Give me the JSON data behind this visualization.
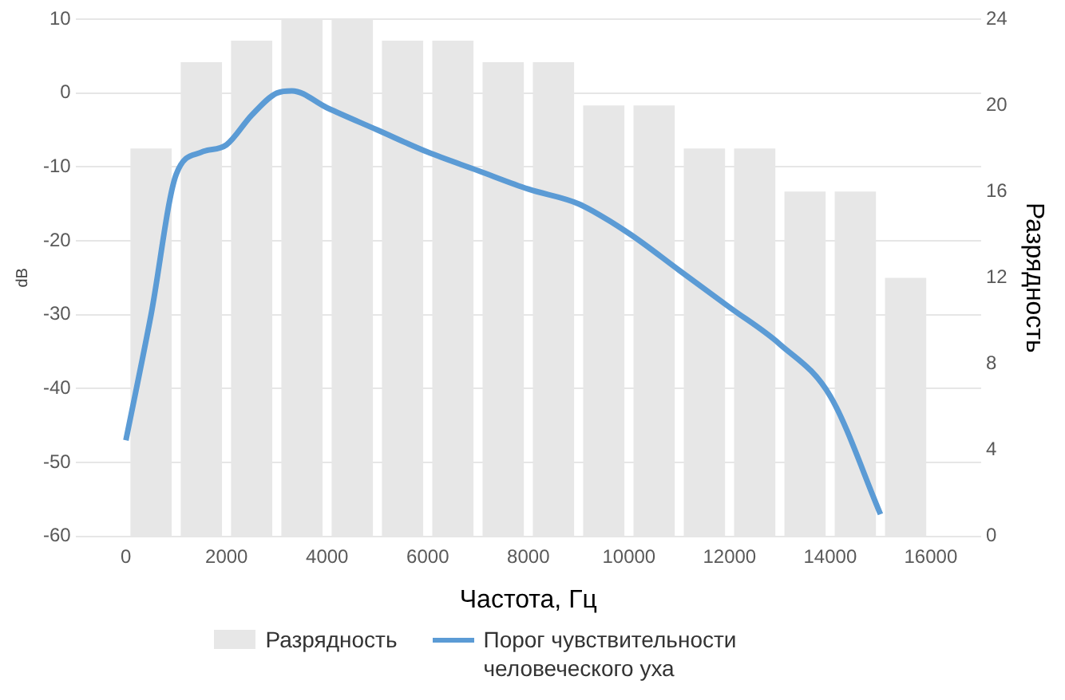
{
  "chart_data": {
    "type": "bar",
    "xlabel": "Частота, Гц",
    "ylabel": "dB",
    "y2label": "Разрядность",
    "xlim": [
      0,
      16000
    ],
    "xticks": [
      0,
      2000,
      4000,
      6000,
      8000,
      10000,
      12000,
      14000,
      16000
    ],
    "ylim": [
      -60,
      10
    ],
    "yticks": [
      -60,
      -50,
      -40,
      -30,
      -20,
      -10,
      0,
      10
    ],
    "y2lim": [
      0,
      24
    ],
    "y2ticks": [
      0,
      4,
      8,
      12,
      16,
      20,
      24
    ],
    "grid": "y",
    "legend": "bottom",
    "series": [
      {
        "name": "Разрядность",
        "color": "#e7e7e7",
        "axis": "y2",
        "x": [
          500,
          1500,
          2500,
          3500,
          4500,
          5500,
          6500,
          7500,
          8500,
          9500,
          10500,
          11500,
          12500,
          13500,
          14500,
          15500
        ],
        "values": [
          18,
          22,
          23,
          24,
          24,
          23,
          23,
          22,
          22,
          20,
          20,
          18,
          18,
          16,
          16,
          12
        ]
      },
      {
        "type": "line",
        "name": "Порог чувствительности человеческого уха",
        "color": "#5b9bd5",
        "marker": "none",
        "x": [
          0,
          500,
          1000,
          1500,
          2000,
          2500,
          3000,
          3300,
          4000,
          5000,
          6000,
          7000,
          8000,
          9000,
          10000,
          11000,
          12000,
          13000,
          14000,
          15000
        ],
        "values": [
          -47,
          -30,
          -11,
          -8,
          -7,
          -3,
          0,
          0.3,
          -2,
          -5,
          -8,
          -10.5,
          -13,
          -15,
          -19,
          -24,
          -29,
          -34,
          -41,
          -57
        ]
      }
    ]
  }
}
